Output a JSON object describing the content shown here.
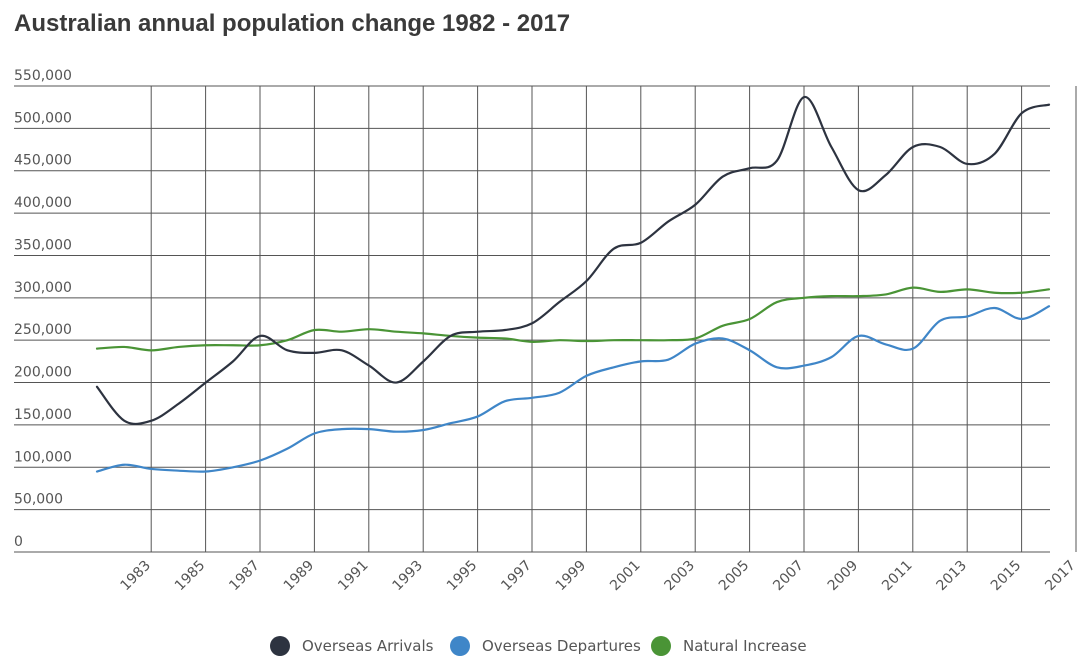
{
  "title": "Australian annual population change 1982 - 2017",
  "colors": {
    "arrivals": "#2d3340",
    "departures": "#3f86c8",
    "natural": "#4a9436",
    "grid": "#555555"
  },
  "chart_data": {
    "type": "line",
    "title": "Australian annual population change 1982 - 2017",
    "xlabel": "",
    "ylabel": "",
    "x": [
      1982,
      1983,
      1984,
      1985,
      1986,
      1987,
      1988,
      1989,
      1990,
      1991,
      1992,
      1993,
      1994,
      1995,
      1996,
      1997,
      1998,
      1999,
      2000,
      2001,
      2002,
      2003,
      2004,
      2005,
      2006,
      2007,
      2008,
      2009,
      2010,
      2011,
      2012,
      2013,
      2014,
      2015,
      2016,
      2017
    ],
    "xticks": [
      "1983",
      "1985",
      "1987",
      "1989",
      "1991",
      "1993",
      "1995",
      "1997",
      "1999",
      "2001",
      "2003",
      "2005",
      "2007",
      "2009",
      "2011",
      "2013",
      "2015",
      "2017"
    ],
    "ylim": [
      0,
      550000
    ],
    "yticks": [
      "0",
      "50,000",
      "100,000",
      "150,000",
      "200,000",
      "250,000",
      "300,000",
      "350,000",
      "400,000",
      "450,000",
      "500,000",
      "550,000"
    ],
    "grid": true,
    "legend_position": "bottom",
    "series": [
      {
        "name": "Overseas Arrivals",
        "color": "#2d3340",
        "values": [
          195000,
          155000,
          155000,
          175000,
          200000,
          225000,
          255000,
          238000,
          235000,
          238000,
          220000,
          200000,
          225000,
          255000,
          260000,
          262000,
          270000,
          295000,
          320000,
          358000,
          365000,
          390000,
          410000,
          443000,
          453000,
          462000,
          537000,
          478000,
          427000,
          445000,
          478000,
          478000,
          458000,
          470000,
          518000,
          528000
        ]
      },
      {
        "name": "Overseas Departures",
        "color": "#3f86c8",
        "values": [
          95000,
          103000,
          98000,
          96000,
          95000,
          100000,
          108000,
          122000,
          140000,
          145000,
          145000,
          142000,
          144000,
          152000,
          160000,
          178000,
          182000,
          188000,
          208000,
          218000,
          225000,
          227000,
          246000,
          252000,
          238000,
          218000,
          220000,
          230000,
          255000,
          245000,
          240000,
          273000,
          278000,
          288000,
          275000,
          290000
        ]
      },
      {
        "name": "Natural Increase",
        "color": "#4a9436",
        "values": [
          240000,
          242000,
          238000,
          242000,
          244000,
          244000,
          244000,
          250000,
          262000,
          260000,
          263000,
          260000,
          258000,
          255000,
          253000,
          252000,
          248000,
          250000,
          249000,
          250000,
          250000,
          250000,
          252000,
          267000,
          275000,
          295000,
          300000,
          302000,
          302000,
          304000,
          312000,
          307000,
          310000,
          306000,
          306000,
          310000
        ]
      }
    ]
  },
  "legend": {
    "items": [
      {
        "label": "Overseas Arrivals",
        "color": "#2d3340"
      },
      {
        "label": "Overseas Departures",
        "color": "#3f86c8"
      },
      {
        "label": "Natural Increase",
        "color": "#4a9436"
      }
    ]
  }
}
